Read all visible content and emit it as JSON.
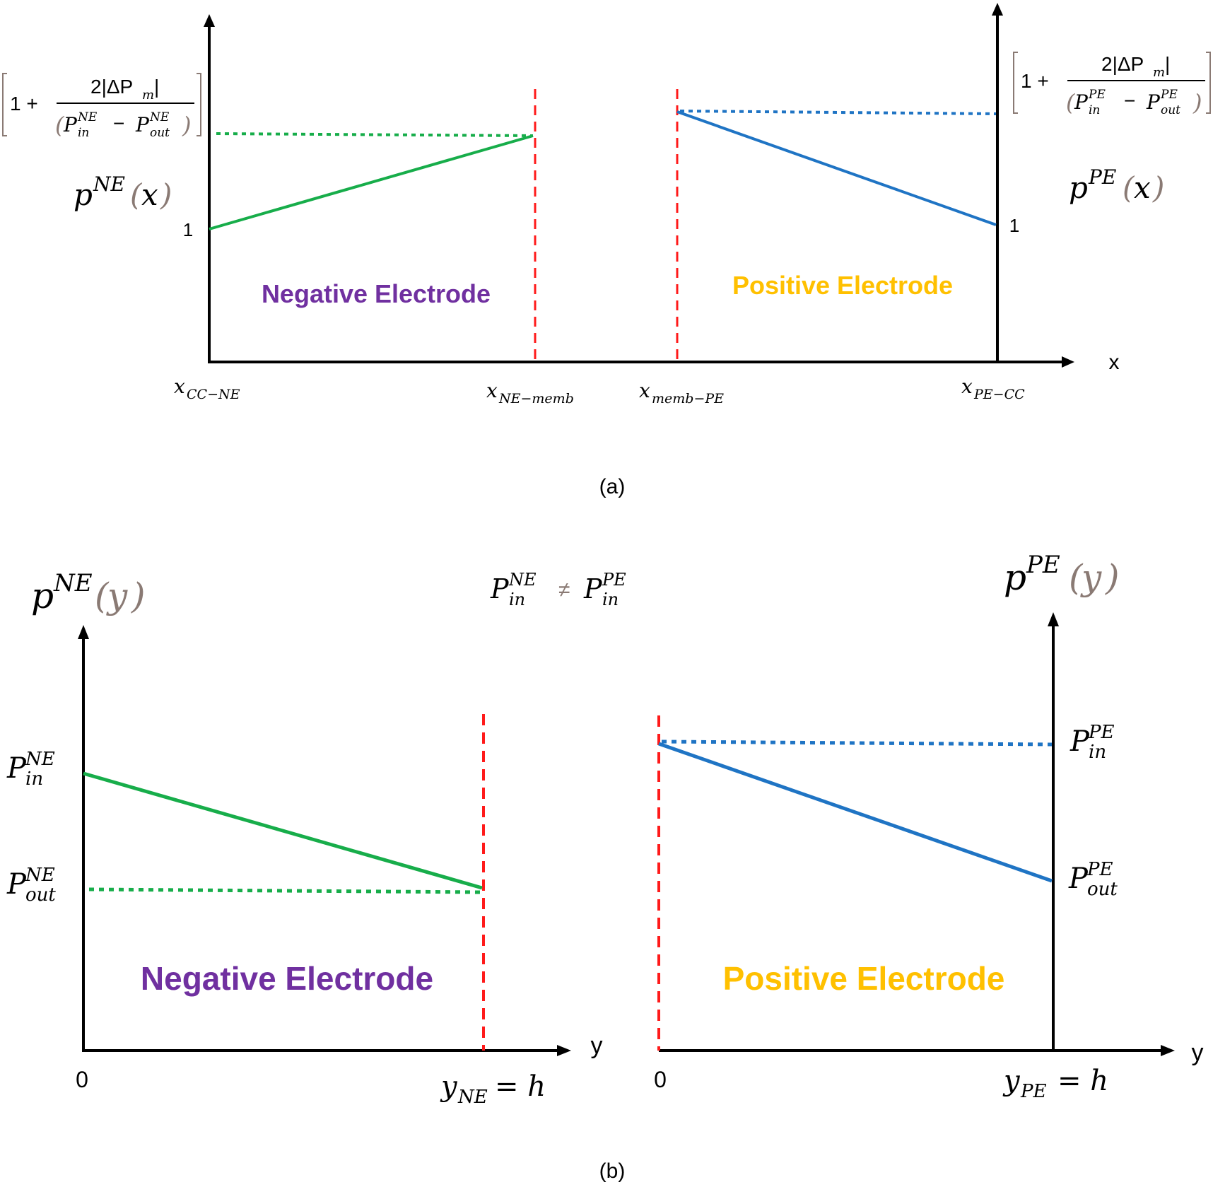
{
  "colors": {
    "axis": "#000000",
    "ne_line": "#17ad4a",
    "pe_line": "#1f74c4",
    "membrane": "#ff1a1a",
    "ne_label": "#7030a0",
    "pe_label": "#ffc000",
    "bracket": "#8a7a74",
    "paren": "#8a7a74"
  },
  "panel_a": {
    "caption": "(a)",
    "axis_x_label": "x",
    "ne_region_label": "Negative Electrode",
    "pe_region_label": "Positive Electrode",
    "ne_func": {
      "p": "p",
      "sup": "NE",
      "arg": "x"
    },
    "pe_func": {
      "p": "p",
      "sup": "PE",
      "arg": "x"
    },
    "ne_one": "1",
    "pe_one": "1",
    "x_ticks": [
      {
        "base": "x",
        "sub": "CC−NE"
      },
      {
        "base": "x",
        "sub": "NE−memb"
      },
      {
        "base": "x",
        "sub": "memb−PE"
      },
      {
        "base": "x",
        "sub": "PE−CC"
      }
    ],
    "ne_bound": {
      "one_plus": "1 +",
      "num": "2|ΔP",
      "num_sub": "m",
      "num_close": "|",
      "sup_in": "NE",
      "sub_in": "in",
      "sup_out": "NE",
      "sub_out": "out",
      "minus": "−",
      "P": "P"
    },
    "pe_bound": {
      "one_plus": "1 +",
      "num": "2|ΔP",
      "num_sub": "m",
      "num_close": "|",
      "sup_in": "PE",
      "sub_in": "in",
      "sup_out": "PE",
      "sub_out": "out",
      "minus": "−",
      "P": "P"
    }
  },
  "panel_b": {
    "caption": "(b)",
    "axis_y_label_left": "y",
    "axis_y_label_right": "y",
    "ne_region_label": "Negative Electrode",
    "pe_region_label": "Positive Electrode",
    "ne_func": {
      "p": "p",
      "sup": "NE",
      "arg": "y"
    },
    "pe_func": {
      "p": "p",
      "sup": "PE",
      "arg": "y"
    },
    "inequality": {
      "P1": "P",
      "sup1": "NE",
      "sub1": "in",
      "neq": "≠",
      "P2": "P",
      "sup2": "PE",
      "sub2": "in"
    },
    "ne_zero": "0",
    "pe_zero": "0",
    "ne_h": {
      "base": "y",
      "sub": "NE",
      "rest": "= h"
    },
    "pe_h": {
      "base": "y",
      "sub": "PE",
      "rest": "= h"
    },
    "ne_pin": {
      "P": "P",
      "sup": "NE",
      "sub": "in"
    },
    "ne_pout": {
      "P": "P",
      "sup": "NE",
      "sub": "out"
    },
    "pe_pin": {
      "P": "P",
      "sup": "PE",
      "sub": "in"
    },
    "pe_pout": {
      "P": "P",
      "sup": "PE",
      "sub": "out"
    }
  }
}
